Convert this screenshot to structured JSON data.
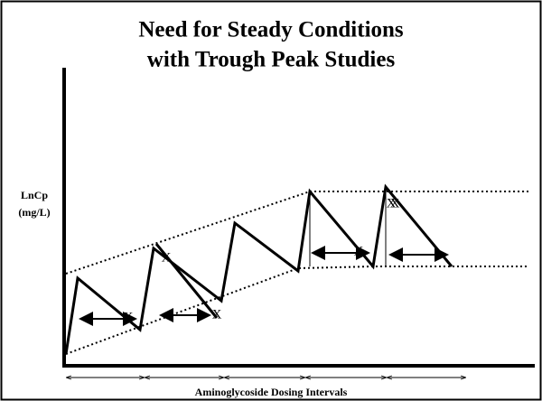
{
  "title": [
    "Need for Steady Conditions",
    "with Trough Peak Studies"
  ],
  "y_axis_label": [
    "LnCp",
    "(mg/L)"
  ],
  "x_axis_label": "Aminoglycoside Dosing Intervals",
  "markers": [
    "X",
    "X",
    "X",
    "X",
    "X",
    "X"
  ]
}
